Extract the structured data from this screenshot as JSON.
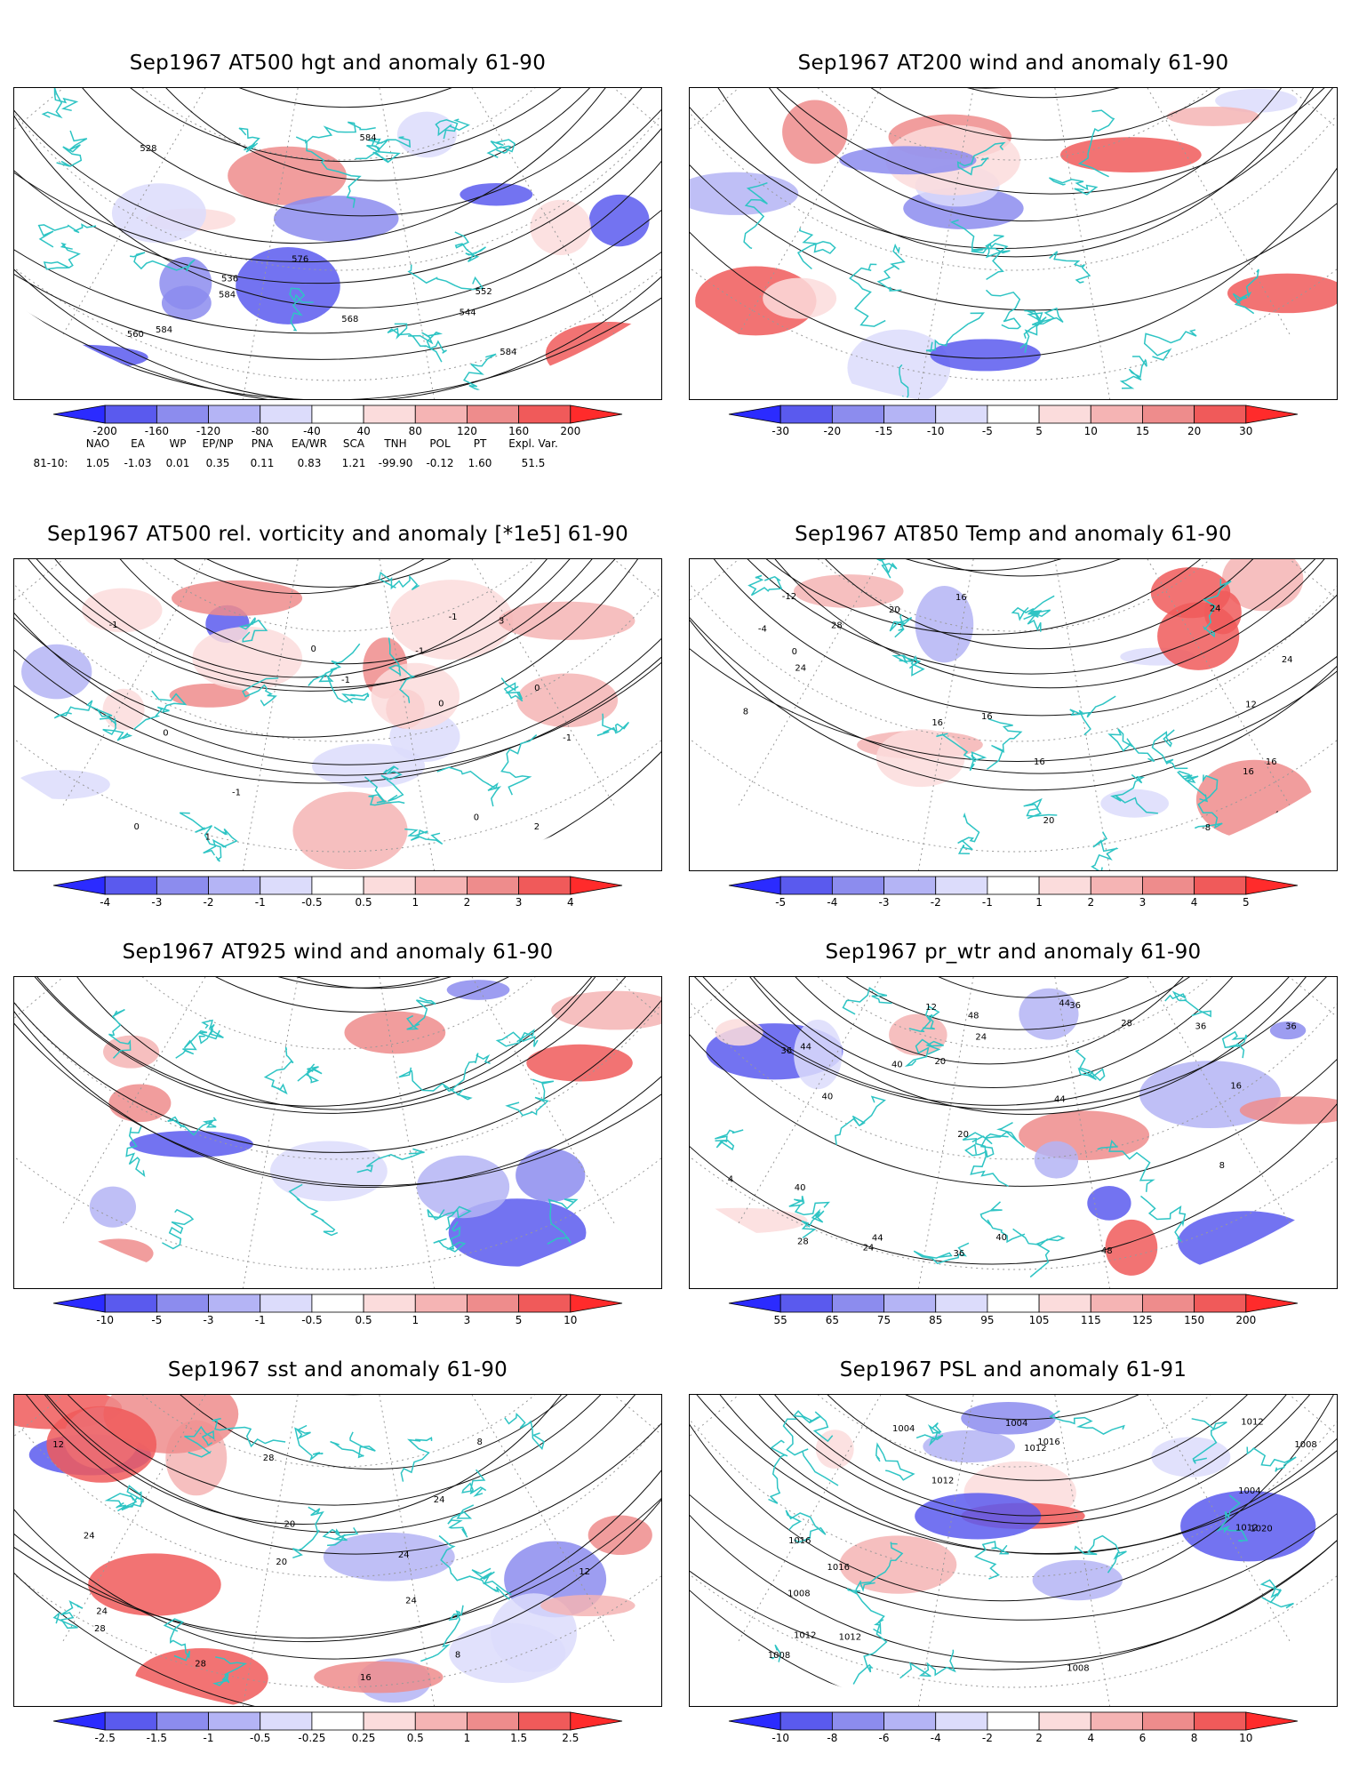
{
  "panels": [
    {
      "id": "p1",
      "title": "Sep1967 AT500 hgt and anomaly 61-90",
      "ticks": [
        "-200",
        "-160",
        "-120",
        "-80",
        "-40",
        "40",
        "80",
        "120",
        "160",
        "200"
      ],
      "colors": [
        "#2b2bff",
        "#5a5aee",
        "#8c8cee",
        "#b4b4f5",
        "#dcdcfb",
        "#ffffff",
        "#fbdcdc",
        "#f5b4b4",
        "#ee8c8c",
        "#f05a5a",
        "#ff2b2b"
      ],
      "contour_labels": [
        "528",
        "536",
        "544",
        "552",
        "560",
        "568",
        "576",
        "584",
        "584",
        "584",
        "584"
      ]
    },
    {
      "id": "p2",
      "title": "Sep1967 AT200 wind and anomaly 61-90",
      "ticks": [
        "-30",
        "-20",
        "-15",
        "-10",
        "-5",
        "5",
        "10",
        "15",
        "20",
        "30"
      ],
      "colors": [
        "#2b2bff",
        "#5a5aee",
        "#8c8cee",
        "#b4b4f5",
        "#dcdcfb",
        "#ffffff",
        "#fbdcdc",
        "#f5b4b4",
        "#ee8c8c",
        "#f05a5a",
        "#ff2b2b"
      ],
      "contour_labels": []
    },
    {
      "id": "p3",
      "title": "Sep1967 AT500 rel. vorticity and anomaly [*1e5] 61-90",
      "ticks": [
        "-4",
        "-3",
        "-2",
        "-1",
        "-0.5",
        "0.5",
        "1",
        "2",
        "3",
        "4"
      ],
      "colors": [
        "#2b2bff",
        "#5a5aee",
        "#8c8cee",
        "#b4b4f5",
        "#dcdcfb",
        "#ffffff",
        "#fbdcdc",
        "#f5b4b4",
        "#ee8c8c",
        "#f05a5a",
        "#ff2b2b"
      ],
      "contour_labels": [
        "0",
        "0",
        "0",
        "-1",
        "-1",
        "-1",
        "1",
        "2",
        "3",
        "-1",
        "0",
        "0",
        "-1",
        "-1",
        "0",
        "0"
      ]
    },
    {
      "id": "p4",
      "title": "Sep1967 AT850 Temp and anomaly 61-90",
      "ticks": [
        "-5",
        "-4",
        "-3",
        "-2",
        "-1",
        "1",
        "2",
        "3",
        "4",
        "5"
      ],
      "colors": [
        "#2b2bff",
        "#5a5aee",
        "#8c8cee",
        "#b4b4f5",
        "#dcdcfb",
        "#ffffff",
        "#fbdcdc",
        "#f5b4b4",
        "#ee8c8c",
        "#f05a5a",
        "#ff2b2b"
      ],
      "contour_labels": [
        "16",
        "16",
        "16",
        "16",
        "20",
        "24",
        "24",
        "20",
        "16",
        "12",
        "8",
        "4",
        "0",
        "-4",
        "-8",
        "-12",
        "24",
        "16",
        "28"
      ]
    },
    {
      "id": "p5",
      "title": "Sep1967 AT925 wind and anomaly 61-90",
      "ticks": [
        "-10",
        "-5",
        "-3",
        "-1",
        "-0.5",
        "0.5",
        "1",
        "3",
        "5",
        "10"
      ],
      "colors": [
        "#2b2bff",
        "#5a5aee",
        "#8c8cee",
        "#b4b4f5",
        "#dcdcfb",
        "#ffffff",
        "#fbdcdc",
        "#f5b4b4",
        "#ee8c8c",
        "#f05a5a",
        "#ff2b2b"
      ],
      "contour_labels": []
    },
    {
      "id": "p6",
      "title": "Sep1967 pr_wtr and anomaly 61-90",
      "ticks": [
        "55",
        "65",
        "75",
        "85",
        "95",
        "105",
        "115",
        "125",
        "150",
        "200"
      ],
      "colors": [
        "#2b2bff",
        "#5a5aee",
        "#8c8cee",
        "#b4b4f5",
        "#dcdcfb",
        "#ffffff",
        "#fbdcdc",
        "#f5b4b4",
        "#ee8c8c",
        "#f05a5a",
        "#ff2b2b"
      ],
      "contour_labels": [
        "48",
        "44",
        "40",
        "36",
        "36",
        "40",
        "36",
        "44",
        "48",
        "44",
        "40",
        "36",
        "20",
        "24",
        "28",
        "16",
        "12",
        "8",
        "4",
        "20",
        "24",
        "28",
        "36",
        "40",
        "44",
        "48"
      ]
    },
    {
      "id": "p7",
      "title": "Sep1967 sst and anomaly 61-90",
      "ticks": [
        "-2.5",
        "-1.5",
        "-1",
        "-0.5",
        "-0.25",
        "0.25",
        "0.5",
        "1",
        "1.5",
        "2.5"
      ],
      "colors": [
        "#2b2bff",
        "#5a5aee",
        "#8c8cee",
        "#b4b4f5",
        "#dcdcfb",
        "#ffffff",
        "#fbdcdc",
        "#f5b4b4",
        "#ee8c8c",
        "#f05a5a",
        "#ff2b2b"
      ],
      "contour_labels": [
        "24",
        "28",
        "8",
        "12",
        "16",
        "20",
        "24",
        "28",
        "20",
        "24",
        "24",
        "28",
        "24",
        "12",
        "8"
      ]
    },
    {
      "id": "p8",
      "title": "Sep1967 PSL and anomaly 61-91",
      "ticks": [
        "-10",
        "-8",
        "-6",
        "-4",
        "-2",
        "2",
        "4",
        "6",
        "8",
        "10"
      ],
      "colors": [
        "#2b2bff",
        "#5a5aee",
        "#8c8cee",
        "#b4b4f5",
        "#dcdcfb",
        "#ffffff",
        "#fbdcdc",
        "#f5b4b4",
        "#ee8c8c",
        "#f05a5a",
        "#ff2b2b"
      ],
      "contour_labels": [
        "1012",
        "1016",
        "1008",
        "1012",
        "1004",
        "1008",
        "1004",
        "1012",
        "1016",
        "1020",
        "1016",
        "1012",
        "1008",
        "1004",
        "1008",
        "1012",
        "1012"
      ]
    }
  ],
  "indices": {
    "headers": [
      "NAO",
      "EA",
      "WP",
      "EP/NP",
      "PNA",
      "EA/WR",
      "SCA",
      "TNH",
      "POL",
      "PT",
      "Expl. Var."
    ],
    "row_label": "81-10:",
    "values": [
      "1.05",
      "-1.03",
      "0.01",
      "0.35",
      "0.11",
      "0.83",
      "1.21",
      "-99.90",
      "-0.12",
      "1.60",
      "51.5"
    ]
  }
}
